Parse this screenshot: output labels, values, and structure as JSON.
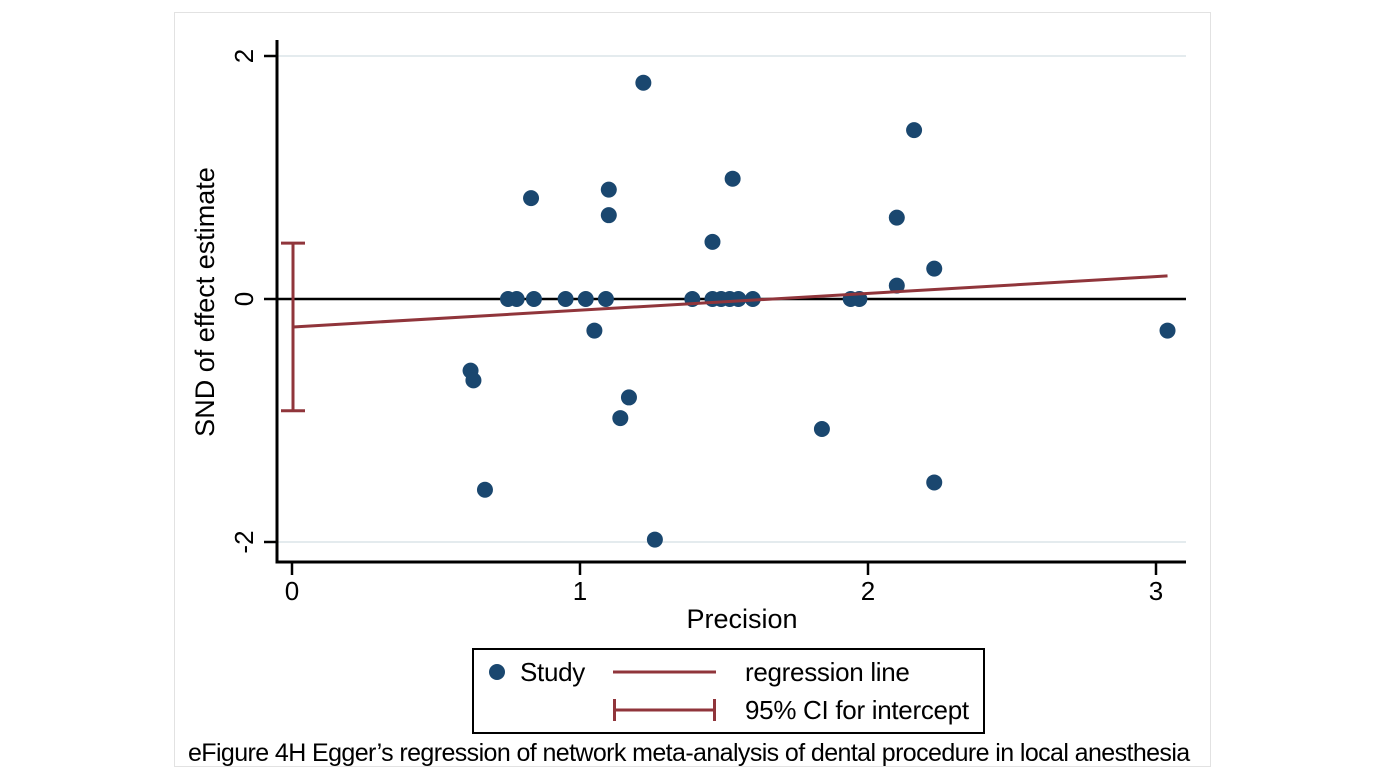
{
  "figure": {
    "caption": "eFigure 4H Egger’s regression of network meta-analysis of dental procedure in local anesthesia"
  },
  "colors": {
    "study_point": "#1a476f",
    "regression_line": "#90353b",
    "ci_bracket": "#90353b",
    "gridline": "#e4ebee",
    "axis": "#000000",
    "zero_line": "#000000",
    "legend_border": "#000000",
    "panel_border": "#e2e2e2"
  },
  "chart_data": {
    "type": "scatter",
    "title": "",
    "xlabel": "Precision",
    "ylabel": "SND of effect estimate",
    "xlim": [
      0,
      3.1
    ],
    "ylim": [
      -2.15,
      2.15
    ],
    "x_ticks": [
      0,
      1,
      2,
      3
    ],
    "y_ticks": [
      2,
      0,
      -2
    ],
    "grid_y": [
      2,
      -2
    ],
    "zero_line_y": 0,
    "grid": "horizontal-light",
    "legend_position": "bottom-center-boxed",
    "series": [
      {
        "name": "Study",
        "kind": "scatter",
        "color": "#1a476f",
        "points": [
          [
            0.62,
            -0.59
          ],
          [
            0.63,
            -0.67
          ],
          [
            0.67,
            -1.57
          ],
          [
            0.75,
            0
          ],
          [
            0.78,
            0
          ],
          [
            0.83,
            0.83
          ],
          [
            0.84,
            0
          ],
          [
            0.95,
            0
          ],
          [
            1.02,
            0
          ],
          [
            1.05,
            -0.26
          ],
          [
            1.09,
            0
          ],
          [
            1.1,
            0.9
          ],
          [
            1.1,
            0.69
          ],
          [
            1.14,
            -0.98
          ],
          [
            1.17,
            -0.81
          ],
          [
            1.22,
            1.78
          ],
          [
            1.26,
            -1.98
          ],
          [
            1.39,
            0
          ],
          [
            1.46,
            0.47
          ],
          [
            1.46,
            0
          ],
          [
            1.49,
            0
          ],
          [
            1.52,
            0
          ],
          [
            1.53,
            0.99
          ],
          [
            1.55,
            0
          ],
          [
            1.6,
            0
          ],
          [
            1.84,
            -1.07
          ],
          [
            1.94,
            0
          ],
          [
            1.97,
            0
          ],
          [
            2.1,
            0.67
          ],
          [
            2.1,
            0.11
          ],
          [
            2.16,
            1.39
          ],
          [
            2.23,
            0.25
          ],
          [
            2.23,
            -1.51
          ],
          [
            3.04,
            -0.26
          ]
        ]
      },
      {
        "name": "regression line",
        "kind": "line",
        "color": "#90353b",
        "x": [
          0,
          3.04
        ],
        "y": [
          -0.23,
          0.19
        ]
      },
      {
        "name": "95% CI for intercept",
        "kind": "interval",
        "color": "#90353b",
        "x": 0,
        "y_low": -0.92,
        "y_high": 0.46
      }
    ]
  }
}
